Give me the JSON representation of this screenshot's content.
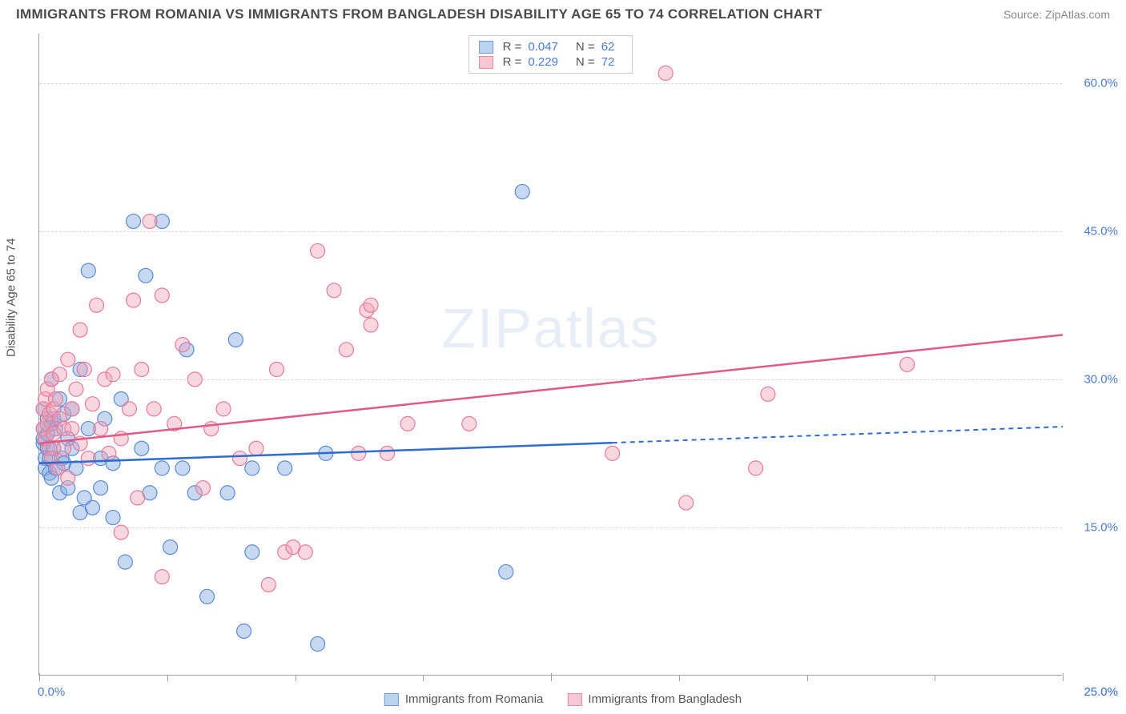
{
  "header": {
    "title": "IMMIGRANTS FROM ROMANIA VS IMMIGRANTS FROM BANGLADESH DISABILITY AGE 65 TO 74 CORRELATION CHART",
    "source": "Source: ZipAtlas.com"
  },
  "chart": {
    "type": "scatter",
    "ylabel": "Disability Age 65 to 74",
    "watermark_bold": "ZIP",
    "watermark_thin": "atlas",
    "xlim": [
      0,
      25
    ],
    "ylim": [
      0,
      65
    ],
    "x_ticks": [
      0,
      12.5,
      25
    ],
    "x_tick_labels": [
      "0.0%",
      "",
      "25.0%"
    ],
    "x_minor_ticks": [
      3.125,
      6.25,
      9.375,
      15.625,
      18.75,
      21.875
    ],
    "y_gridlines": [
      15,
      30,
      45,
      60
    ],
    "y_tick_labels": [
      "15.0%",
      "30.0%",
      "45.0%",
      "60.0%"
    ],
    "background_color": "#ffffff",
    "grid_color": "#d8d8d8",
    "axis_color": "#a0a0a0",
    "tick_label_color": "#4a7bd0",
    "series": [
      {
        "name": "Immigrants from Romania",
        "marker_fill": "rgba(130,170,225,0.45)",
        "marker_stroke": "#5a8bd8",
        "swatch_fill": "#bcd4f0",
        "swatch_border": "#6a9be0",
        "line_color": "#2e6cd0",
        "r": "0.047",
        "n": "62",
        "trend": {
          "x1": 0,
          "y1": 21.5,
          "x2": 14,
          "y2": 23.5,
          "x2_ext": 25,
          "y2_ext": 25.2,
          "dashed_after": 14
        },
        "marker_radius": 9,
        "points": [
          [
            0.1,
            25
          ],
          [
            0.1,
            23.5
          ],
          [
            0.1,
            24
          ],
          [
            0.1,
            27
          ],
          [
            0.15,
            22
          ],
          [
            0.15,
            21
          ],
          [
            0.2,
            26
          ],
          [
            0.2,
            24.5
          ],
          [
            0.2,
            23
          ],
          [
            0.25,
            20.5
          ],
          [
            0.25,
            22
          ],
          [
            0.3,
            25.5
          ],
          [
            0.3,
            30
          ],
          [
            0.3,
            20
          ],
          [
            0.35,
            23
          ],
          [
            0.35,
            26
          ],
          [
            0.4,
            21
          ],
          [
            0.4,
            25
          ],
          [
            0.5,
            28
          ],
          [
            0.5,
            18.5
          ],
          [
            0.55,
            22
          ],
          [
            0.6,
            26.5
          ],
          [
            0.6,
            21.5
          ],
          [
            0.7,
            24
          ],
          [
            0.7,
            19
          ],
          [
            0.8,
            23
          ],
          [
            0.8,
            27
          ],
          [
            0.9,
            21
          ],
          [
            1.0,
            31
          ],
          [
            1.0,
            16.5
          ],
          [
            1.1,
            18
          ],
          [
            1.2,
            25
          ],
          [
            1.2,
            41
          ],
          [
            1.3,
            17
          ],
          [
            1.5,
            19
          ],
          [
            1.5,
            22
          ],
          [
            1.6,
            26
          ],
          [
            1.8,
            21.5
          ],
          [
            1.8,
            16
          ],
          [
            2.0,
            28
          ],
          [
            2.1,
            11.5
          ],
          [
            2.3,
            46
          ],
          [
            2.5,
            23
          ],
          [
            2.6,
            40.5
          ],
          [
            2.7,
            18.5
          ],
          [
            3.0,
            21
          ],
          [
            3.0,
            46
          ],
          [
            3.2,
            13
          ],
          [
            3.5,
            21
          ],
          [
            3.6,
            33
          ],
          [
            3.8,
            18.5
          ],
          [
            4.1,
            8
          ],
          [
            4.6,
            18.5
          ],
          [
            4.8,
            34
          ],
          [
            5.0,
            4.5
          ],
          [
            5.2,
            12.5
          ],
          [
            5.2,
            21
          ],
          [
            6.8,
            3.2
          ],
          [
            7.0,
            22.5
          ],
          [
            11.4,
            10.5
          ],
          [
            11.8,
            49
          ],
          [
            6.0,
            21
          ]
        ]
      },
      {
        "name": "Immigrants from Bangladesh",
        "marker_fill": "rgba(240,160,180,0.42)",
        "marker_stroke": "#e87a9a",
        "swatch_fill": "#f5c8d4",
        "swatch_border": "#ea8aa5",
        "line_color": "#e05a85",
        "r": "0.229",
        "n": "72",
        "trend": {
          "x1": 0,
          "y1": 23.5,
          "x2": 25,
          "y2": 34.5,
          "dashed_after": null
        },
        "marker_radius": 9,
        "points": [
          [
            0.1,
            27
          ],
          [
            0.1,
            25
          ],
          [
            0.15,
            28
          ],
          [
            0.15,
            24
          ],
          [
            0.2,
            25.5
          ],
          [
            0.2,
            29
          ],
          [
            0.25,
            23
          ],
          [
            0.25,
            26.5
          ],
          [
            0.3,
            30
          ],
          [
            0.3,
            22
          ],
          [
            0.35,
            27
          ],
          [
            0.35,
            24.5
          ],
          [
            0.4,
            28
          ],
          [
            0.45,
            21
          ],
          [
            0.5,
            26
          ],
          [
            0.5,
            30.5
          ],
          [
            0.6,
            25
          ],
          [
            0.6,
            23
          ],
          [
            0.7,
            32
          ],
          [
            0.7,
            20
          ],
          [
            0.8,
            27
          ],
          [
            0.8,
            25
          ],
          [
            0.9,
            29
          ],
          [
            1.0,
            23.5
          ],
          [
            1.0,
            35
          ],
          [
            1.1,
            31
          ],
          [
            1.2,
            22
          ],
          [
            1.3,
            27.5
          ],
          [
            1.4,
            37.5
          ],
          [
            1.5,
            25
          ],
          [
            1.6,
            30
          ],
          [
            1.7,
            22.5
          ],
          [
            1.8,
            30.5
          ],
          [
            2.0,
            14.5
          ],
          [
            2.0,
            24
          ],
          [
            2.2,
            27
          ],
          [
            2.3,
            38
          ],
          [
            2.4,
            18
          ],
          [
            2.5,
            31
          ],
          [
            2.7,
            46
          ],
          [
            2.8,
            27
          ],
          [
            3.0,
            38.5
          ],
          [
            3.3,
            25.5
          ],
          [
            3.5,
            33.5
          ],
          [
            3.8,
            30
          ],
          [
            4.0,
            19
          ],
          [
            4.2,
            25
          ],
          [
            4.5,
            27
          ],
          [
            4.9,
            22
          ],
          [
            5.3,
            23
          ],
          [
            5.6,
            9.2
          ],
          [
            5.8,
            31
          ],
          [
            6.0,
            12.5
          ],
          [
            6.2,
            13
          ],
          [
            6.5,
            12.5
          ],
          [
            6.8,
            43
          ],
          [
            7.2,
            39
          ],
          [
            7.5,
            33
          ],
          [
            7.8,
            22.5
          ],
          [
            8.0,
            37
          ],
          [
            8.1,
            37.5
          ],
          [
            8.1,
            35.5
          ],
          [
            8.5,
            22.5
          ],
          [
            9.0,
            25.5
          ],
          [
            10.5,
            25.5
          ],
          [
            14.0,
            22.5
          ],
          [
            15.3,
            61
          ],
          [
            15.8,
            17.5
          ],
          [
            17.5,
            21
          ],
          [
            17.8,
            28.5
          ],
          [
            21.2,
            31.5
          ],
          [
            3.0,
            10
          ]
        ]
      }
    ]
  },
  "legend_bottom": [
    {
      "label": "Immigrants from Romania",
      "fill": "#bcd4f0",
      "border": "#6a9be0"
    },
    {
      "label": "Immigrants from Bangladesh",
      "fill": "#f5c8d4",
      "border": "#ea8aa5"
    }
  ]
}
